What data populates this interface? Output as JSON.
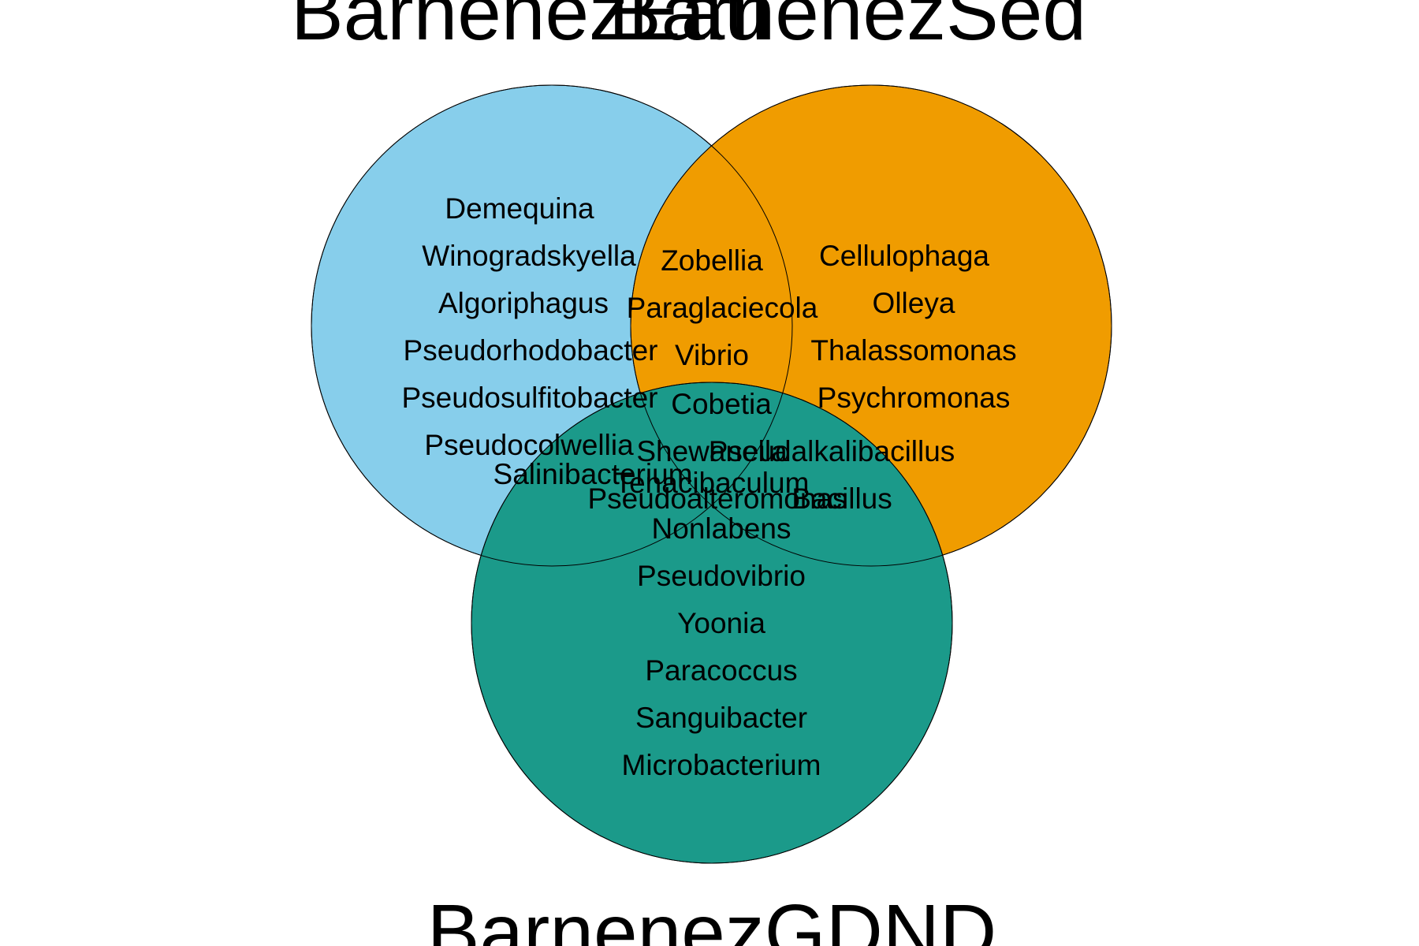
{
  "diagram": {
    "type": "venn",
    "sets": [
      {
        "id": "A",
        "name": "BarnenezEau",
        "color": "#87CEEB"
      },
      {
        "id": "B",
        "name": "BarnenezSed",
        "color": "#F09C00"
      },
      {
        "id": "C",
        "name": "BarnenezGDND",
        "color": "#1B9A8A"
      }
    ],
    "regions": {
      "A_only": [
        "Demequina",
        "Winogradskyella",
        "Algoriphagus",
        "Pseudorhodobacter",
        "Pseudosulfitobacter",
        "Pseudocolwellia"
      ],
      "AB": [
        "Zobellia",
        "Paraglaciecola",
        "Vibrio"
      ],
      "B_only": [
        "Cellulophaga",
        "Olleya",
        "Thalassomonas",
        "Psychromonas"
      ],
      "AC": [
        "Salinibacterium"
      ],
      "ABC": [
        "Cobetia",
        "Shewanella",
        "Tenacibaculum",
        "Pseudoalteromonas"
      ],
      "BC": [
        "Pseudalkalibacillus",
        "Bacillus"
      ],
      "C_only": [
        "Nonlabens",
        "Pseudovibrio",
        "Yoonia",
        "Paracoccus",
        "Sanguibacter",
        "Microbacterium"
      ]
    }
  }
}
